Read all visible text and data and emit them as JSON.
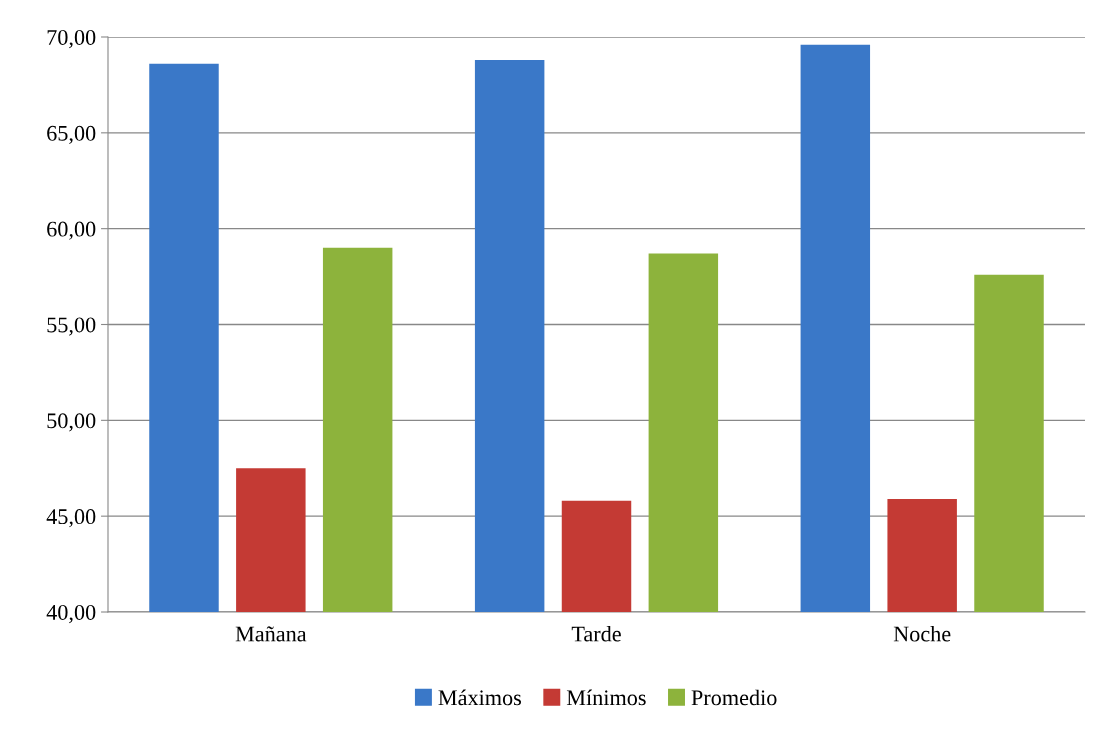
{
  "chart_data": {
    "type": "bar",
    "categories": [
      "Mañana",
      "Tarde",
      "Noche"
    ],
    "series": [
      {
        "name": "Máximos",
        "color": "#3a78c8",
        "values": [
          68.6,
          68.8,
          69.6
        ]
      },
      {
        "name": "Mínimos",
        "color": "#c43a34",
        "values": [
          47.5,
          45.8,
          45.9
        ]
      },
      {
        "name": "Promedio",
        "color": "#8db33c",
        "values": [
          59.0,
          58.7,
          57.6
        ]
      }
    ],
    "ylim": [
      40,
      70
    ],
    "yticks": [
      {
        "value": 40,
        "label": "40,00"
      },
      {
        "value": 45,
        "label": "45,00"
      },
      {
        "value": 50,
        "label": "50,00"
      },
      {
        "value": 55,
        "label": "55,00"
      },
      {
        "value": 60,
        "label": "60,00"
      },
      {
        "value": 65,
        "label": "65,00"
      },
      {
        "value": 70,
        "label": "70,00"
      }
    ],
    "grid": "y",
    "legend": "bottom"
  }
}
